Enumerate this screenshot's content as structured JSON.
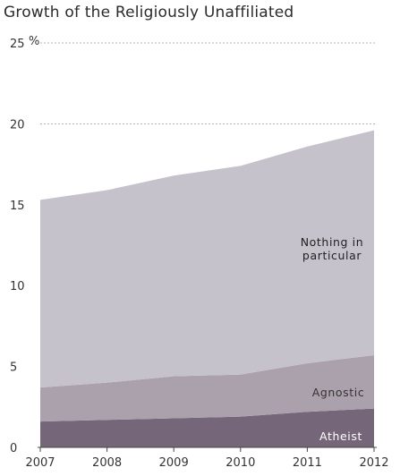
{
  "chart_data": {
    "type": "area",
    "stacked": true,
    "title": "Growth of the Religiously Unaffiliated",
    "xlabel": "",
    "ylabel": "",
    "y_unit": "%",
    "x": [
      "2007",
      "2008",
      "2009",
      "2010",
      "2011",
      "2012"
    ],
    "ylim": [
      0,
      25
    ],
    "yticks": [
      "0",
      "5",
      "10",
      "15",
      "20",
      "25"
    ],
    "grid": "dashed at 20 and 25",
    "series": [
      {
        "name": "Atheist",
        "values": [
          1.6,
          1.7,
          1.8,
          1.9,
          2.2,
          2.4
        ],
        "color": "#756679",
        "label_color": "#ffffff"
      },
      {
        "name": "Agnostic",
        "values": [
          2.1,
          2.3,
          2.6,
          2.6,
          3.0,
          3.3
        ],
        "color": "#aba1ad",
        "label_color": "#333333"
      },
      {
        "name": "Nothing in particular",
        "label_lines": [
          "Nothing in",
          "particular"
        ],
        "values": [
          11.6,
          11.9,
          12.4,
          12.9,
          13.4,
          13.9
        ],
        "color": "#c6c2cc",
        "label_color": "#222222"
      }
    ]
  }
}
